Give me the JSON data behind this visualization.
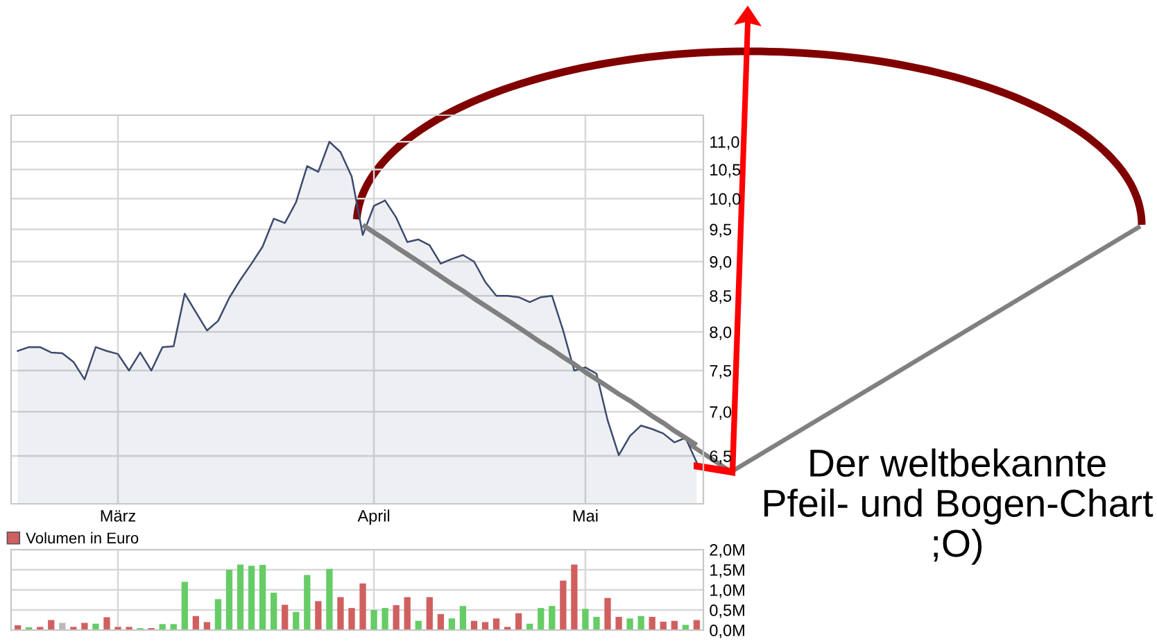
{
  "chart_data": [
    {
      "type": "area",
      "categories": [
        null,
        null,
        null,
        null,
        null,
        null,
        null,
        null,
        null,
        "März",
        null,
        null,
        null,
        null,
        null,
        null,
        null,
        null,
        null,
        null,
        null,
        null,
        null,
        null,
        null,
        null,
        null,
        null,
        null,
        null,
        null,
        null,
        "April",
        null,
        null,
        null,
        null,
        null,
        null,
        null,
        null,
        null,
        null,
        null,
        null,
        null,
        null,
        null,
        null,
        null,
        null,
        "Mai",
        null,
        null,
        null,
        null,
        null,
        null,
        null,
        null,
        null,
        null
      ],
      "series": [
        {
          "color": "#3c4a6e",
          "values": [
            7.75,
            7.8,
            7.8,
            7.73,
            7.72,
            7.61,
            7.39,
            7.8,
            7.75,
            7.71,
            7.5,
            7.73,
            7.5,
            7.8,
            7.81,
            8.53,
            8.27,
            8.02,
            8.15,
            8.47,
            8.73,
            8.97,
            9.23,
            9.67,
            9.6,
            9.94,
            10.56,
            10.46,
            11.0,
            10.81,
            10.38,
            9.41,
            9.88,
            9.97,
            9.69,
            9.3,
            9.34,
            9.25,
            8.97,
            9.04,
            9.1,
            9.0,
            8.7,
            8.5,
            8.5,
            8.48,
            8.41,
            8.48,
            8.5,
            8.02,
            7.5,
            7.54,
            7.46,
            6.9,
            6.51,
            6.72,
            6.84,
            6.8,
            6.75,
            6.65,
            6.7,
            6.43
          ]
        },
        {
          "type": "line",
          "color": "#808080",
          "values": [
            null,
            null,
            null,
            null,
            null,
            null,
            null,
            null,
            null,
            null,
            null,
            null,
            null,
            null,
            null,
            null,
            null,
            null,
            null,
            null,
            null,
            null,
            null,
            null,
            null,
            null,
            null,
            null,
            null,
            null,
            null,
            9.57,
            9.45,
            9.34,
            9.22,
            9.11,
            9.0,
            8.89,
            8.78,
            8.67,
            8.57,
            8.46,
            8.36,
            8.26,
            8.16,
            8.06,
            7.96,
            7.86,
            7.77,
            7.67,
            7.58,
            7.48,
            7.39,
            7.3,
            7.21,
            7.13,
            7.04,
            6.95,
            6.87,
            6.78,
            6.7,
            6.62
          ]
        }
      ],
      "log": "y",
      "ylim": [
        6.0,
        11.5
      ],
      "yticks": [
        {
          "value": 6.5,
          "label": "6,5"
        },
        {
          "value": 7.0,
          "label": "7,0"
        },
        {
          "value": 7.5,
          "label": "7,5"
        },
        {
          "value": 8.0,
          "label": "8,0"
        },
        {
          "value": 8.5,
          "label": "8,5"
        },
        {
          "value": 9.0,
          "label": "9,0"
        },
        {
          "value": 9.5,
          "label": "9,5"
        },
        {
          "value": 10.0,
          "label": "10,0"
        },
        {
          "value": 10.5,
          "label": "10,5"
        },
        {
          "value": 11.0,
          "label": "11,0"
        }
      ],
      "grid": true,
      "legend": false,
      "annotations": [
        "Der weltbekannte\nPfeil- und Bogen-Chart\n;O)"
      ]
    },
    {
      "type": "bar",
      "categories": [
        null,
        null,
        null,
        null,
        null,
        null,
        null,
        null,
        null,
        null,
        null,
        null,
        null,
        null,
        null,
        null,
        null,
        null,
        null,
        null,
        null,
        null,
        null,
        null,
        null,
        null,
        null,
        null,
        null,
        null,
        null,
        null,
        null,
        null,
        null,
        null,
        null,
        null,
        null,
        null,
        null,
        null,
        null,
        null,
        null,
        null,
        null,
        null,
        null,
        null,
        null,
        null,
        null,
        null,
        null,
        null,
        null,
        null,
        null,
        null,
        null,
        null
      ],
      "series": [
        {
          "name": "Volumen in Euro",
          "color": "#d06060",
          "values": [
            0.12,
            0.07,
            0.08,
            0.25,
            0.18,
            0.08,
            0.18,
            0.16,
            0.32,
            0.08,
            0.08,
            0.05,
            0.05,
            0.15,
            0.15,
            1.2,
            0.35,
            0.2,
            0.77,
            1.5,
            1.63,
            1.6,
            1.62,
            0.93,
            0.63,
            0.45,
            1.37,
            0.72,
            1.52,
            0.82,
            0.55,
            1.16,
            0.5,
            0.55,
            0.62,
            0.82,
            0.23,
            0.82,
            0.4,
            0.29,
            0.6,
            0.23,
            0.2,
            0.29,
            0.08,
            0.42,
            0.16,
            0.55,
            0.6,
            1.23,
            1.63,
            0.53,
            0.33,
            0.8,
            0.33,
            0.29,
            0.35,
            0.33,
            0.21,
            0.23,
            0.13,
            0.25
          ],
          "colors": [
            "#d06060",
            "#66cc66",
            "#d06060",
            "#d06060",
            "#bbbbbb",
            "#d06060",
            "#d06060",
            "#66cc66",
            "#d06060",
            "#d06060",
            "#d06060",
            "#66cc66",
            "#d06060",
            "#66cc66",
            "#66cc66",
            "#66cc66",
            "#d06060",
            "#d06060",
            "#66cc66",
            "#66cc66",
            "#66cc66",
            "#66cc66",
            "#66cc66",
            "#66cc66",
            "#d06060",
            "#66cc66",
            "#66cc66",
            "#d06060",
            "#66cc66",
            "#d06060",
            "#d06060",
            "#d06060",
            "#66cc66",
            "#66cc66",
            "#d06060",
            "#d06060",
            "#66cc66",
            "#d06060",
            "#d06060",
            "#66cc66",
            "#66cc66",
            "#d06060",
            "#d06060",
            "#d06060",
            "#d06060",
            "#d06060",
            "#66cc66",
            "#66cc66",
            "#66cc66",
            "#d06060",
            "#d06060",
            "#66cc66",
            "#66cc66",
            "#d06060",
            "#d06060",
            "#66cc66",
            "#66cc66",
            "#d06060",
            "#d06060",
            "#d06060",
            "#66cc66",
            "#d06060"
          ]
        }
      ],
      "ylim": [
        0,
        2.0
      ],
      "yticks": [
        {
          "value": 0,
          "label": "0,0M"
        },
        {
          "value": 0.5,
          "label": "0,5M"
        },
        {
          "value": 1.0,
          "label": "1,0M"
        },
        {
          "value": 1.5,
          "label": "1,5M"
        },
        {
          "value": 2.0,
          "label": "2,0M"
        }
      ],
      "grid": true,
      "legend": "top left",
      "tick_labels": "y"
    }
  ]
}
